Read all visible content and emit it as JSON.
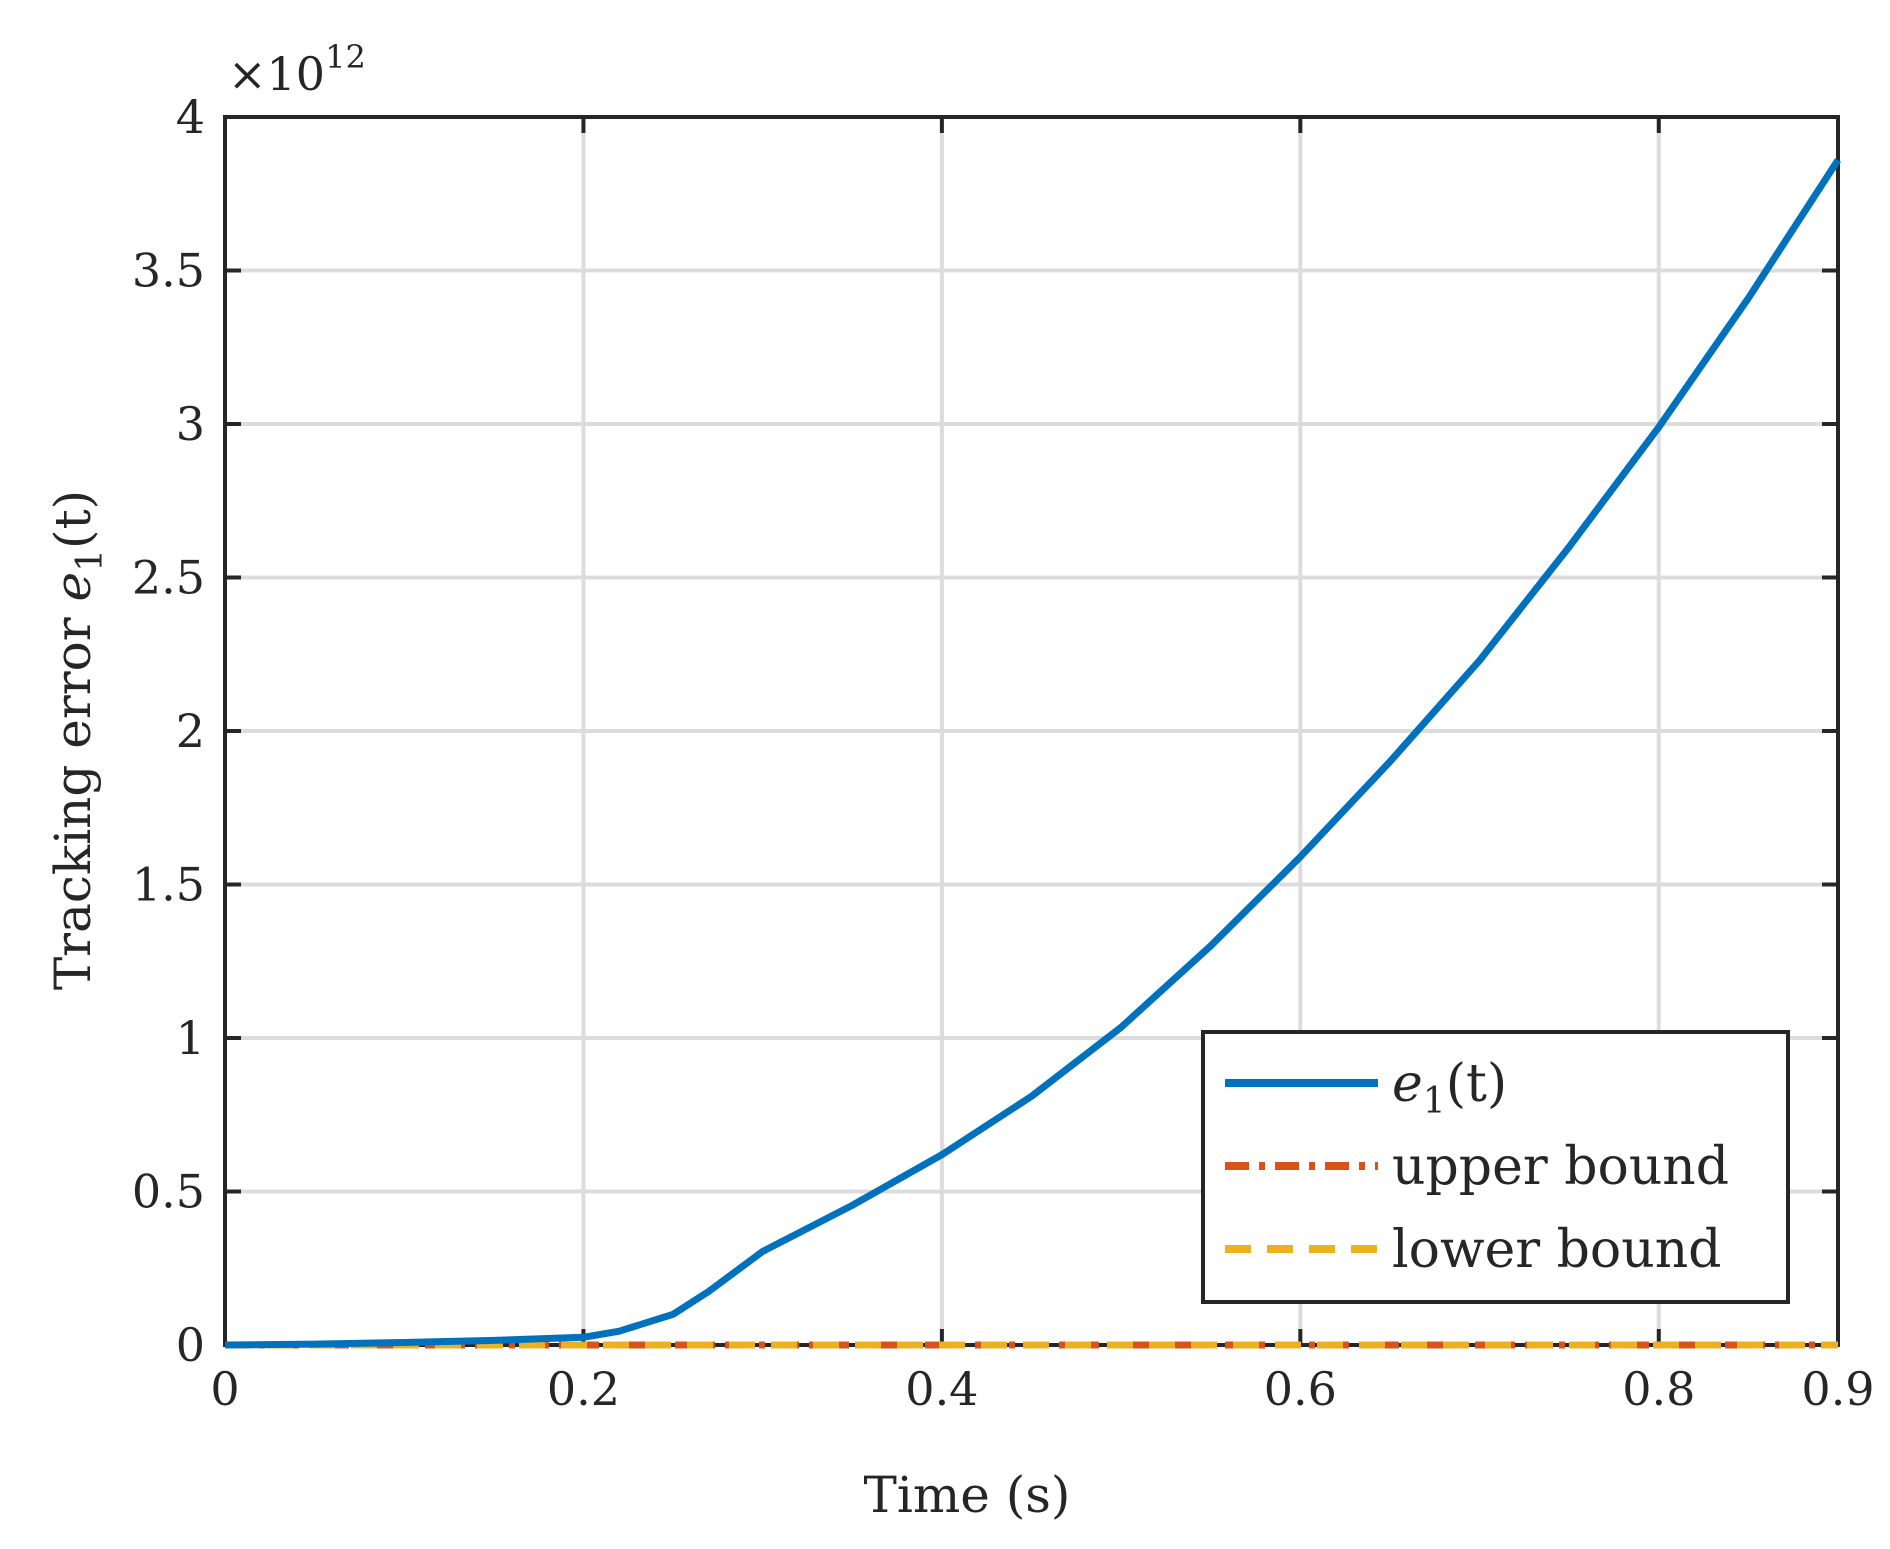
{
  "chart_data": {
    "type": "line",
    "xlabel": "Time (s)",
    "ylabel_prefix": "Tracking error ",
    "ylabel_var": "e",
    "ylabel_sub": "1",
    "ylabel_suffix": "(t)",
    "exponent_label": "×10",
    "exponent_power": "12",
    "xlim": [
      0,
      0.9
    ],
    "ylim": [
      0,
      4
    ],
    "y_scale_factor": 1000000000000.0,
    "x_ticks": [
      0,
      0.2,
      0.4,
      0.6,
      0.8,
      0.9
    ],
    "x_tick_labels": [
      "0",
      "0.2",
      "0.4",
      "0.6",
      "0.8",
      "0.9"
    ],
    "y_ticks": [
      0,
      0.5,
      1,
      1.5,
      2,
      2.5,
      3,
      3.5,
      4
    ],
    "y_tick_labels": [
      "0",
      "0.5",
      "1",
      "1.5",
      "2",
      "2.5",
      "3",
      "3.5",
      "4"
    ],
    "grid": true,
    "legend_position": "lower-right",
    "series": [
      {
        "name": "e1(t)",
        "legend_var": "e",
        "legend_sub": "1",
        "legend_suffix": "(t)",
        "color": "#0072BD",
        "style": "solid",
        "x": [
          0,
          0.05,
          0.1,
          0.15,
          0.2,
          0.22,
          0.25,
          0.27,
          0.3,
          0.35,
          0.4,
          0.45,
          0.5,
          0.55,
          0.6,
          0.65,
          0.7,
          0.75,
          0.8,
          0.85,
          0.9
        ],
        "y": [
          0,
          0.003,
          0.008,
          0.015,
          0.025,
          0.045,
          0.1,
          0.175,
          0.305,
          0.455,
          0.62,
          0.81,
          1.035,
          1.3,
          1.59,
          1.9,
          2.23,
          2.6,
          2.99,
          3.41,
          3.86
        ]
      },
      {
        "name": "upper bound",
        "color": "#D95319",
        "style": "dashdot",
        "x": [
          0,
          0.9
        ],
        "y": [
          0,
          0
        ]
      },
      {
        "name": "lower bound",
        "color": "#EDB120",
        "style": "dashed",
        "x": [
          0,
          0.9
        ],
        "y": [
          0,
          0
        ]
      }
    ]
  }
}
